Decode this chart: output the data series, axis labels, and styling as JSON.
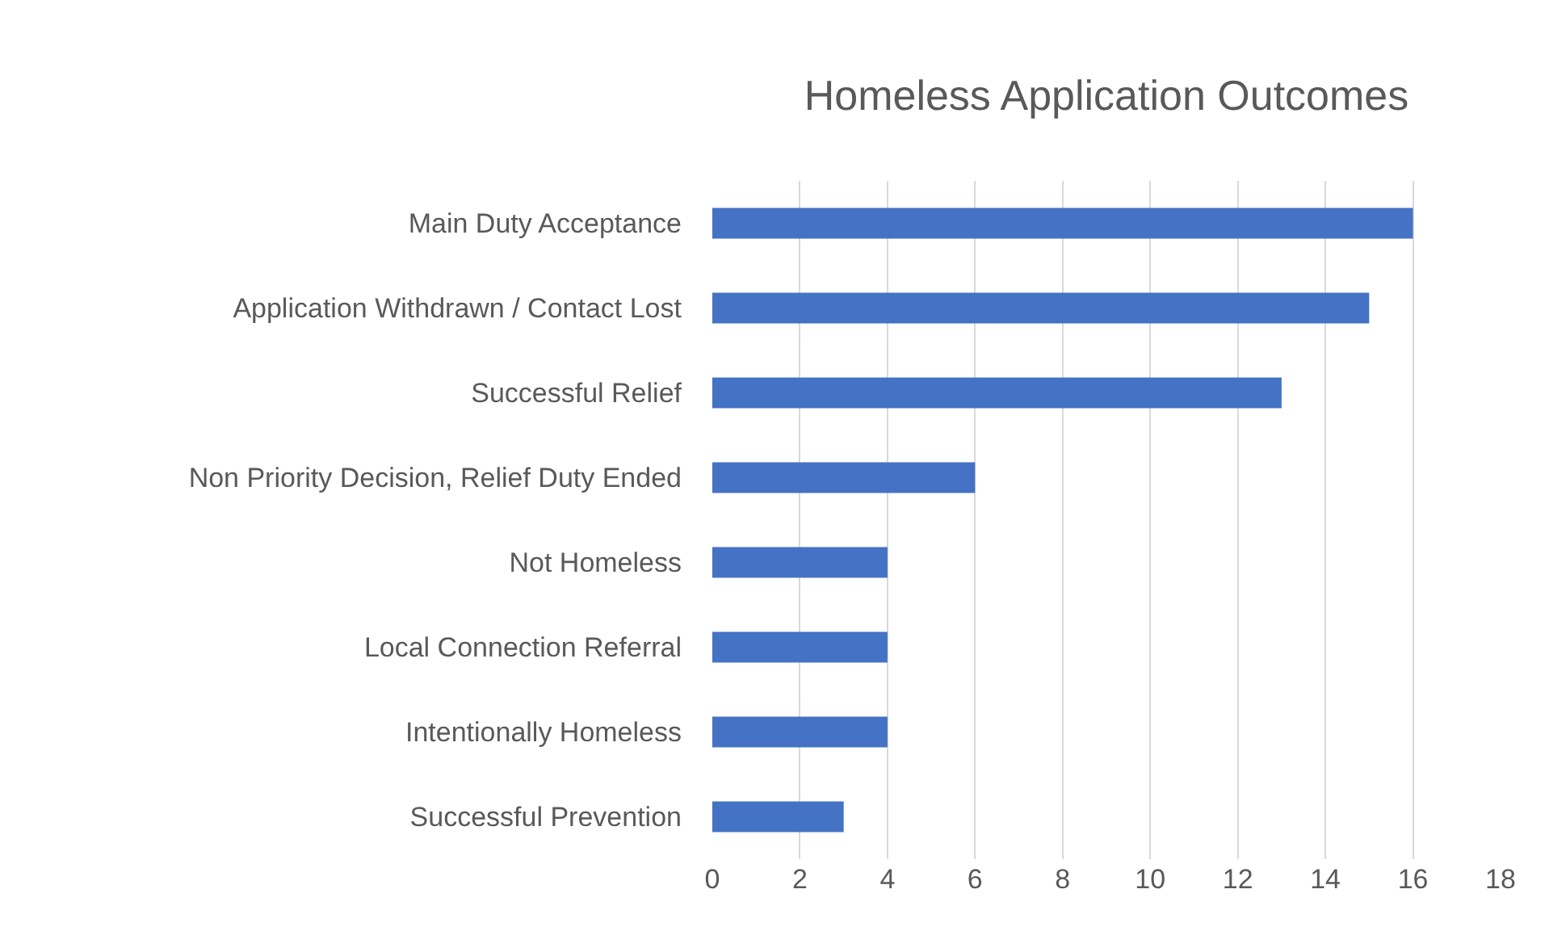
{
  "chart_data": {
    "type": "bar",
    "orientation": "horizontal",
    "title": "Homeless Application Outcomes",
    "categories": [
      "Main Duty Acceptance",
      "Application Withdrawn / Contact Lost",
      "Successful Relief",
      "Non Priority Decision, Relief Duty Ended",
      "Not Homeless",
      "Local Connection Referral",
      "Intentionally Homeless",
      "Successful Prevention"
    ],
    "values": [
      16,
      15,
      13,
      6,
      4,
      4,
      4,
      3
    ],
    "color": "#4472c4",
    "xlim": [
      0,
      18
    ],
    "xticks": [
      0,
      2,
      4,
      6,
      8,
      10,
      12,
      14,
      16,
      18
    ],
    "grid": "x",
    "legend": false
  }
}
